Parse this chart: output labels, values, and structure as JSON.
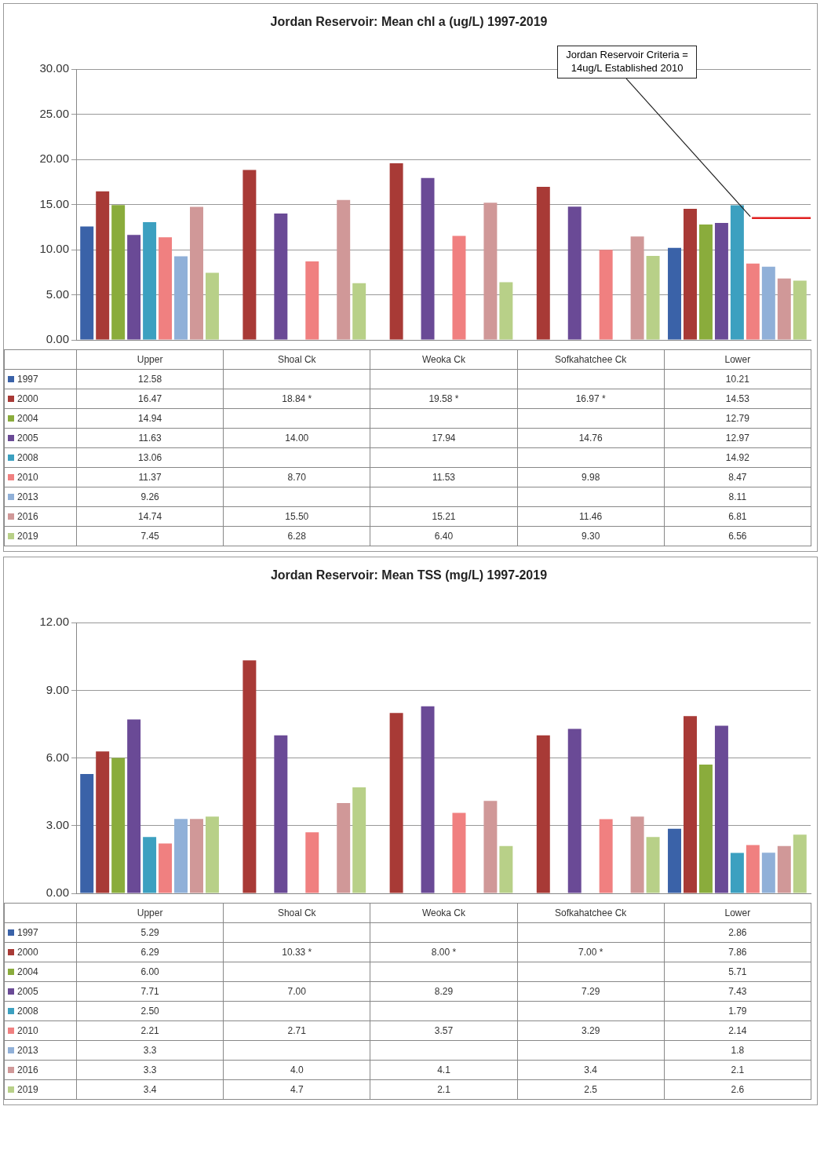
{
  "chart_data": [
    {
      "type": "bar",
      "title": "Jordan Reservoir: Mean chl a (ug/L) 1997-2019",
      "categories": [
        "Upper",
        "Shoal Ck",
        "Weoka Ck",
        "Sofkahatchee Ck",
        "Lower"
      ],
      "ylim": [
        0,
        30
      ],
      "yticks": [
        {
          "value": 0,
          "label": "0.00"
        },
        {
          "value": 5,
          "label": "5.00"
        },
        {
          "value": 10,
          "label": "10.00"
        },
        {
          "value": 15,
          "label": "15.00"
        },
        {
          "value": 20,
          "label": "20.00"
        },
        {
          "value": 25,
          "label": "25.00"
        },
        {
          "value": 30,
          "label": "30.00"
        }
      ],
      "grid": "y",
      "legend": "bottom",
      "ref_lines": [
        {
          "axis": "y",
          "value": 13.5,
          "label": "Jordan Reservoir Criteria = 14ug/L Established 2010",
          "color": "#e02020"
        }
      ],
      "series": [
        {
          "name": "1997",
          "color": "#3a62a8",
          "values": [
            12.58,
            null,
            null,
            null,
            10.21
          ],
          "value_labels": [
            "12.58",
            null,
            null,
            null,
            "10.21"
          ]
        },
        {
          "name": "2000",
          "color": "#a83a36",
          "values": [
            16.47,
            18.84,
            19.58,
            16.97,
            14.53
          ],
          "value_labels": [
            "16.47",
            "18.84 *",
            "19.58 *",
            "16.97 *",
            "14.53"
          ]
        },
        {
          "name": "2004",
          "color": "#8aac3c",
          "values": [
            14.94,
            null,
            null,
            null,
            12.79
          ],
          "value_labels": [
            "14.94",
            null,
            null,
            null,
            "12.79"
          ]
        },
        {
          "name": "2005",
          "color": "#6a4a96",
          "values": [
            11.63,
            14.0,
            17.94,
            14.76,
            12.97
          ],
          "value_labels": [
            "11.63",
            "14.00",
            "17.94",
            "14.76",
            "12.97"
          ]
        },
        {
          "name": "2008",
          "color": "#3ca0c0",
          "values": [
            13.06,
            null,
            null,
            null,
            14.92
          ],
          "value_labels": [
            "13.06",
            null,
            null,
            null,
            "14.92"
          ]
        },
        {
          "name": "2010",
          "color": "#f08080",
          "values": [
            11.37,
            8.7,
            11.53,
            9.98,
            8.47
          ],
          "value_labels": [
            "11.37",
            "8.70",
            "11.53",
            "9.98",
            "8.47"
          ]
        },
        {
          "name": "2013",
          "color": "#90b0d8",
          "values": [
            9.26,
            null,
            null,
            null,
            8.11
          ],
          "value_labels": [
            "9.26",
            null,
            null,
            null,
            "8.11"
          ]
        },
        {
          "name": "2016",
          "color": "#d09898",
          "values": [
            14.74,
            15.5,
            15.21,
            11.46,
            6.81
          ],
          "value_labels": [
            "14.74",
            "15.50",
            "15.21",
            "11.46",
            "6.81"
          ]
        },
        {
          "name": "2019",
          "color": "#b8d088",
          "values": [
            7.45,
            6.28,
            6.4,
            9.3,
            6.56
          ],
          "value_labels": [
            "7.45",
            "6.28",
            "6.40",
            "9.30",
            "6.56"
          ]
        }
      ]
    },
    {
      "type": "bar",
      "title": "Jordan Reservoir: Mean TSS (mg/L) 1997-2019",
      "categories": [
        "Upper",
        "Shoal Ck",
        "Weoka Ck",
        "Sofkahatchee Ck",
        "Lower"
      ],
      "ylim": [
        0,
        12
      ],
      "yticks": [
        {
          "value": 0,
          "label": "0.00"
        },
        {
          "value": 3,
          "label": "3.00"
        },
        {
          "value": 6,
          "label": "6.00"
        },
        {
          "value": 9,
          "label": "9.00"
        },
        {
          "value": 12,
          "label": "12.00"
        }
      ],
      "grid": "y",
      "legend": "bottom",
      "series": [
        {
          "name": "1997",
          "color": "#3a62a8",
          "values": [
            5.29,
            null,
            null,
            null,
            2.86
          ],
          "value_labels": [
            "5.29",
            null,
            null,
            null,
            "2.86"
          ]
        },
        {
          "name": "2000",
          "color": "#a83a36",
          "values": [
            6.29,
            10.33,
            8.0,
            7.0,
            7.86
          ],
          "value_labels": [
            "6.29",
            "10.33 *",
            "8.00 *",
            "7.00 *",
            "7.86"
          ]
        },
        {
          "name": "2004",
          "color": "#8aac3c",
          "values": [
            6.0,
            null,
            null,
            null,
            5.71
          ],
          "value_labels": [
            "6.00",
            null,
            null,
            null,
            "5.71"
          ]
        },
        {
          "name": "2005",
          "color": "#6a4a96",
          "values": [
            7.71,
            7.0,
            8.29,
            7.29,
            7.43
          ],
          "value_labels": [
            "7.71",
            "7.00",
            "8.29",
            "7.29",
            "7.43"
          ]
        },
        {
          "name": "2008",
          "color": "#3ca0c0",
          "values": [
            2.5,
            null,
            null,
            null,
            1.79
          ],
          "value_labels": [
            "2.50",
            null,
            null,
            null,
            "1.79"
          ]
        },
        {
          "name": "2010",
          "color": "#f08080",
          "values": [
            2.21,
            2.71,
            3.57,
            3.29,
            2.14
          ],
          "value_labels": [
            "2.21",
            "2.71",
            "3.57",
            "3.29",
            "2.14"
          ]
        },
        {
          "name": "2013",
          "color": "#90b0d8",
          "values": [
            3.3,
            null,
            null,
            null,
            1.8
          ],
          "value_labels": [
            "3.3",
            null,
            null,
            null,
            "1.8"
          ]
        },
        {
          "name": "2016",
          "color": "#d09898",
          "values": [
            3.3,
            4.0,
            4.1,
            3.4,
            2.1
          ],
          "value_labels": [
            "3.3",
            "4.0",
            "4.1",
            "3.4",
            "2.1"
          ]
        },
        {
          "name": "2019",
          "color": "#b8d088",
          "values": [
            3.4,
            4.7,
            2.1,
            2.5,
            2.6
          ],
          "value_labels": [
            "3.4",
            "4.7",
            "2.1",
            "2.5",
            "2.6"
          ]
        }
      ]
    }
  ]
}
